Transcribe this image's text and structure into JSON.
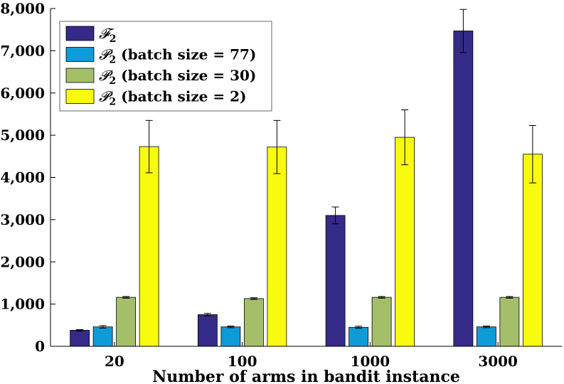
{
  "chart_data": {
    "type": "bar",
    "title": "",
    "xlabel": "Number of arms in bandit instance",
    "ylabel": "",
    "ylim": [
      0,
      8000
    ],
    "yticks": [
      0,
      1000,
      2000,
      3000,
      4000,
      5000,
      6000,
      7000,
      8000
    ],
    "ytick_labels": [
      "0",
      "1,000",
      "2,000",
      "3,000",
      "4,000",
      "5,000",
      "6,000",
      "7,000",
      "8,000"
    ],
    "categories": [
      "20",
      "100",
      "1000",
      "3000"
    ],
    "legend_position": "top-left",
    "series": [
      {
        "name": "F2",
        "legend_symbol": "𝓕",
        "legend_suffix": "",
        "color": "#352a87",
        "values": [
          380,
          750,
          3100,
          7470
        ],
        "errors": [
          15,
          30,
          200,
          510
        ]
      },
      {
        "name": "P2 (batch size = 77)",
        "legend_symbol": "𝓟",
        "legend_suffix": " (batch size = 77)",
        "color": "#0f9bd7",
        "values": [
          460,
          460,
          450,
          460
        ],
        "errors": [
          30,
          20,
          25,
          20
        ]
      },
      {
        "name": "P2 (batch size = 30)",
        "legend_symbol": "𝓟",
        "legend_suffix": " (batch size = 30)",
        "color": "#a5be6a",
        "values": [
          1160,
          1130,
          1160,
          1160
        ],
        "errors": [
          20,
          20,
          20,
          20
        ]
      },
      {
        "name": "P2 (batch size = 2)",
        "legend_symbol": "𝓟",
        "legend_suffix": " (batch size = 2)",
        "color": "#f9fb0e",
        "values": [
          4730,
          4720,
          4950,
          4550
        ],
        "errors": [
          620,
          630,
          650,
          680
        ]
      }
    ]
  }
}
